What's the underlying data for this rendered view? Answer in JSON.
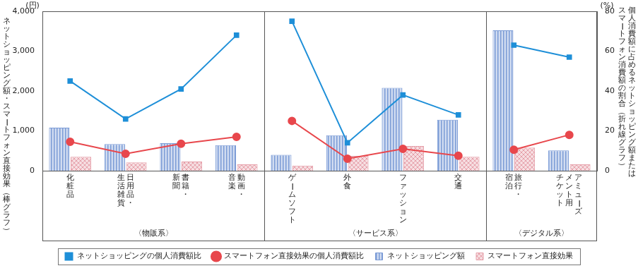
{
  "chart_data": {
    "type": "bar",
    "categories": [
      [
        "化粧品"
      ],
      [
        "日用品・",
        "生活雑貨"
      ],
      [
        "書籍・",
        "新聞"
      ],
      [
        "動画・",
        "音楽"
      ],
      [
        "ゲームソフト"
      ],
      [
        "外食"
      ],
      [
        "ファッション"
      ],
      [
        "交通"
      ],
      [
        "旅行・",
        "宿泊"
      ],
      [
        "アミューズ",
        "メント用",
        "チケット"
      ]
    ],
    "groups": [
      {
        "label": "〈物販系〉",
        "members": [
          "化粧品",
          "日用品・生活雑貨",
          "書籍・新聞",
          "動画・音楽"
        ]
      },
      {
        "label": "〈サービス系〉",
        "members": [
          "ゲームソフト",
          "外食",
          "ファッション",
          "交通"
        ]
      },
      {
        "label": "〈デジタル系〉",
        "members": [
          "旅行・宿泊",
          "アミューズメント用チケット"
        ]
      }
    ],
    "series": [
      {
        "name": "ネットショッピング額",
        "type": "bar",
        "color": "#7b9bd6",
        "values": [
          1080,
          670,
          690,
          640,
          400,
          890,
          2080,
          1280,
          3520,
          510
        ]
      },
      {
        "name": "スマートフォン直接効果",
        "type": "bar",
        "color": "#e6a0aa",
        "values": [
          350,
          210,
          230,
          160,
          130,
          370,
          620,
          350,
          580,
          160
        ]
      },
      {
        "name": "ネットショッピングの個人消費額比",
        "type": "line",
        "axis": "y2",
        "color": "#1e8fd8",
        "marker": "square",
        "line_style": "solid",
        "values": [
          45,
          26,
          41,
          68,
          75,
          14,
          38,
          28,
          63,
          57
        ]
      },
      {
        "name": "スマートフォン直接効果の個人消費額比",
        "type": "line",
        "axis": "y2",
        "color": "#e8474c",
        "marker": "circle",
        "line_style": "solid",
        "values": [
          14.5,
          8.5,
          13.5,
          17,
          25,
          6,
          11,
          7.5,
          10.5,
          18
        ]
      }
    ],
    "ylabel": "ネットショッピング額・スマートフォン直接効果（棒グラフ）",
    "y2label": [
      "個人消費額に占めるネットショッピング額または",
      "スマートフォン消費額の割合（折れ線グラフ）"
    ],
    "y_unit": "(円)",
    "y2_unit": "(%)",
    "ylim": [
      0,
      4000
    ],
    "yticks": [
      0,
      {
        "value": 1000,
        "label": "1,000"
      },
      {
        "value": 2000,
        "label": "2,000"
      },
      {
        "value": 3000,
        "label": "3,000"
      },
      {
        "value": 4000,
        "label": "4,000"
      }
    ],
    "y2lim": [
      0,
      80
    ],
    "y2ticks": [
      0,
      20,
      40,
      60,
      80
    ],
    "grid": false,
    "legend": "bottom"
  }
}
